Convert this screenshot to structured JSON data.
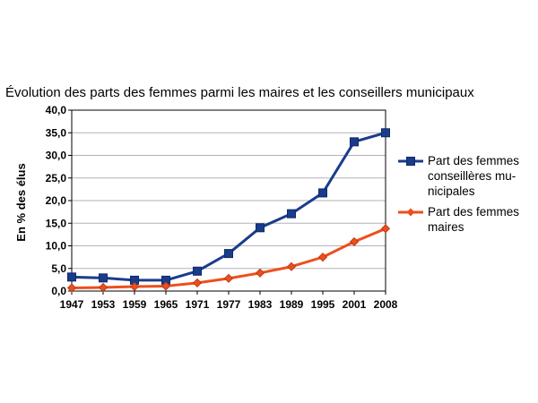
{
  "chart_data": {
    "type": "line",
    "title": "Évolution des parts des femmes parmi les maires et les conseillers municipaux",
    "xlabel": "",
    "ylabel": "En % des élus",
    "x": [
      "1947",
      "1953",
      "1959",
      "1965",
      "1971",
      "1977",
      "1983",
      "1989",
      "1995",
      "2001",
      "2008"
    ],
    "ylim": [
      0,
      40
    ],
    "yticks": [
      "0,0",
      "5,0",
      "10,0",
      "15,0",
      "20,0",
      "25,0",
      "30,0",
      "35,0",
      "40,0"
    ],
    "grid": true,
    "legend_position": "right",
    "series": [
      {
        "name": "Part des femmes conseillères mu-nicipales",
        "legend_lines": [
          "Part des femmes",
          "conseillères mu-",
          "nicipales"
        ],
        "color": "#1a3c8c",
        "marker": "square",
        "values": [
          3.1,
          2.9,
          2.4,
          2.4,
          4.4,
          8.3,
          14.0,
          17.1,
          21.7,
          33.0,
          35.0
        ]
      },
      {
        "name": "Part des femmes maires",
        "legend_lines": [
          "Part des femmes",
          "maires"
        ],
        "color": "#ee4e1d",
        "marker": "diamond",
        "values": [
          0.7,
          0.8,
          1.0,
          1.1,
          1.8,
          2.8,
          4.0,
          5.4,
          7.5,
          10.9,
          13.8
        ]
      }
    ]
  }
}
